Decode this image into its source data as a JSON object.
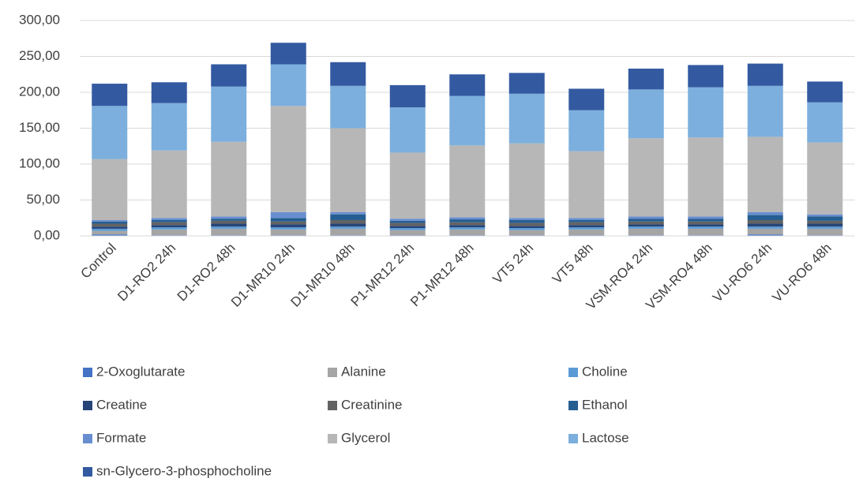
{
  "chart_data": {
    "type": "stacked-bar",
    "categories": [
      "Control",
      "D1-RO2 24h",
      "D1-RO2 48h",
      "D1-MR10 24h",
      "D1-MR10 48h",
      "P1-MR12 24h",
      "P1-MR12 48h",
      "VT5 24h",
      "VT5 48h",
      "VSM-RO4 24h",
      "VSM-RO4 48h",
      "VU-RO6 24h",
      "VU-RO6 48h"
    ],
    "series": [
      {
        "name": "2-Oxoglutarate",
        "color": "#4472c4",
        "values": [
          2,
          1,
          1,
          1,
          1,
          1,
          1,
          1,
          1,
          1,
          1,
          2,
          1
        ]
      },
      {
        "name": "Alanine",
        "color": "#a5a5a5",
        "values": [
          5,
          8,
          9,
          8,
          9,
          7,
          8,
          7,
          8,
          9,
          9,
          8,
          9
        ]
      },
      {
        "name": "Choline",
        "color": "#5b9bd5",
        "values": [
          3,
          3,
          3,
          3,
          3,
          3,
          3,
          3,
          3,
          3,
          3,
          3,
          3
        ]
      },
      {
        "name": "Creatine",
        "color": "#264478",
        "values": [
          3,
          3,
          4,
          4,
          4,
          3,
          3,
          3,
          3,
          3,
          3,
          4,
          4
        ]
      },
      {
        "name": "Creatinine",
        "color": "#636363",
        "values": [
          4,
          4,
          4,
          4,
          5,
          4,
          4,
          4,
          4,
          4,
          4,
          5,
          4
        ]
      },
      {
        "name": "Ethanol",
        "color": "#255e91",
        "values": [
          3,
          3,
          3,
          5,
          8,
          3,
          4,
          4,
          3,
          4,
          4,
          7,
          6
        ]
      },
      {
        "name": "Formate",
        "color": "#698ed0",
        "values": [
          2,
          3,
          3,
          8,
          3,
          3,
          3,
          3,
          3,
          3,
          3,
          4,
          3
        ]
      },
      {
        "name": "Glycerol",
        "color": "#b7b7b7",
        "values": [
          85,
          94,
          104,
          148,
          117,
          92,
          100,
          104,
          93,
          109,
          110,
          105,
          100
        ]
      },
      {
        "name": "Lactose",
        "color": "#7cafdd",
        "values": [
          74,
          66,
          77,
          58,
          59,
          63,
          69,
          69,
          57,
          68,
          70,
          71,
          56
        ]
      },
      {
        "name": "sn-Glycero-3-phosphocholine",
        "color": "#335aa1",
        "values": [
          31,
          29,
          31,
          30,
          33,
          31,
          30,
          29,
          30,
          29,
          31,
          31,
          29
        ]
      }
    ],
    "ylim": [
      0,
      300
    ],
    "yticks": [
      {
        "value": 0,
        "label": "0,00"
      },
      {
        "value": 50,
        "label": "50,00"
      },
      {
        "value": 100,
        "label": "100,00"
      },
      {
        "value": 150,
        "label": "150,00"
      },
      {
        "value": 200,
        "label": "200,00"
      },
      {
        "value": 250,
        "label": "250,00"
      },
      {
        "value": 300,
        "label": "300,00"
      }
    ],
    "grid": true,
    "legend": "bottom"
  }
}
